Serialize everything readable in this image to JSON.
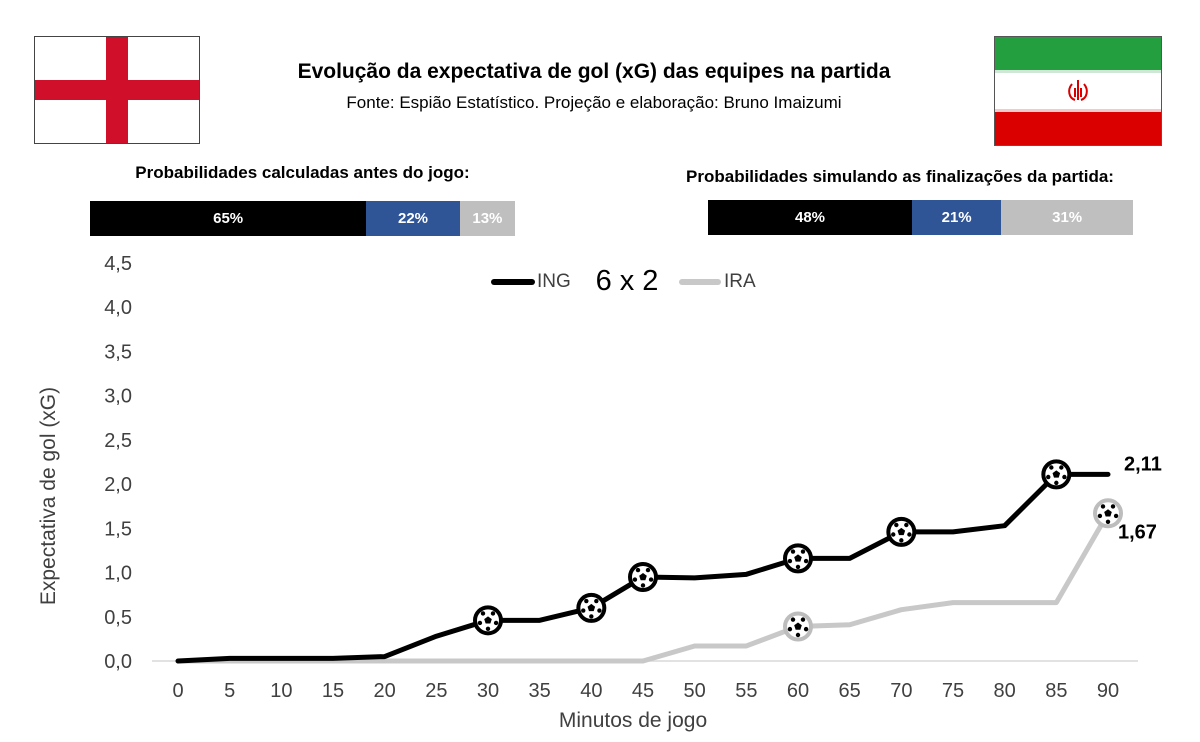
{
  "header": {
    "title": "Evolução da expectativa de gol (xG) das equipes na partida",
    "subtitle": "Fonte: Espião Estatístico. Projeção e elaboração: Bruno Imaizumi"
  },
  "flags": {
    "left": {
      "icon": "england-flag-icon",
      "colors": {
        "cross": "#d0102a",
        "field": "#ffffff"
      }
    },
    "right": {
      "icon": "iran-flag-icon",
      "colors": {
        "green": "#239f40",
        "white": "#ffffff",
        "red": "#da0000"
      }
    }
  },
  "probabilities": {
    "before": {
      "title": "Probabilidades calculadas antes do jogo:",
      "segments": [
        {
          "label": "65%",
          "value": 65,
          "color": "#000000"
        },
        {
          "label": "22%",
          "value": 22,
          "color": "#2f5597"
        },
        {
          "label": "13%",
          "value": 13,
          "color": "#bfbfbf"
        }
      ]
    },
    "simulated": {
      "title": "Probabilidades simulando as finalizações da partida:",
      "segments": [
        {
          "label": "48%",
          "value": 48,
          "color": "#000000"
        },
        {
          "label": "21%",
          "value": 21,
          "color": "#2f5597"
        },
        {
          "label": "31%",
          "value": 31,
          "color": "#bfbfbf"
        }
      ]
    }
  },
  "chart_data": {
    "type": "line",
    "score": "6 x 2",
    "xlabel": "Minutos de jogo",
    "ylabel": "Expectativa de gol (xG)",
    "xlim": [
      0,
      90
    ],
    "ylim": [
      0,
      4.5
    ],
    "xticks": [
      "0",
      "5",
      "10",
      "15",
      "20",
      "25",
      "30",
      "35",
      "40",
      "45",
      "50",
      "55",
      "60",
      "65",
      "70",
      "75",
      "80",
      "85",
      "90"
    ],
    "yticks": [
      "0,0",
      "0,5",
      "1,0",
      "1,5",
      "2,0",
      "2,5",
      "3,0",
      "3,5",
      "4,0",
      "4,5"
    ],
    "grid": false,
    "legend": "top-center",
    "goal_icon": "soccer-ball-icon",
    "series": [
      {
        "name": "ING",
        "color": "#000000",
        "x": [
          0,
          5,
          10,
          15,
          20,
          25,
          30,
          35,
          40,
          45,
          50,
          55,
          60,
          65,
          70,
          75,
          80,
          85,
          90
        ],
        "values": [
          0,
          0.03,
          0.03,
          0.03,
          0.05,
          0.28,
          0.46,
          0.46,
          0.6,
          0.95,
          0.94,
          0.98,
          1.16,
          1.16,
          1.46,
          1.46,
          1.53,
          2.11,
          2.11
        ],
        "goals_at": [
          30,
          40,
          45,
          60,
          70,
          85
        ],
        "end_label": "2,11"
      },
      {
        "name": "IRA",
        "color": "#c8c8c8",
        "x": [
          0,
          5,
          10,
          15,
          20,
          25,
          30,
          35,
          40,
          45,
          50,
          55,
          60,
          65,
          70,
          75,
          80,
          85,
          90
        ],
        "values": [
          0,
          0,
          0,
          0,
          0,
          0,
          0,
          0,
          0,
          0,
          0.17,
          0.17,
          0.39,
          0.41,
          0.58,
          0.66,
          0.66,
          0.66,
          1.67
        ],
        "goals_at": [
          60,
          90
        ],
        "end_label": "1,67"
      }
    ]
  }
}
